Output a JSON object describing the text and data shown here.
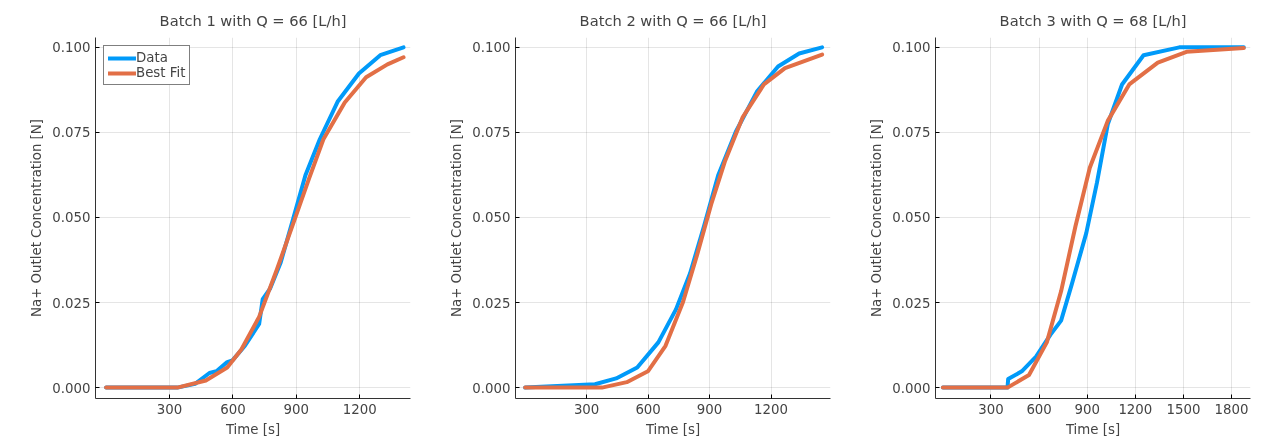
{
  "chart_data": [
    {
      "type": "line",
      "title": "Batch 1 with Q = 66 [L/h]",
      "xlabel": "Time [s]",
      "ylabel": "Na+ Outlet Concentration [N]",
      "xlim": [
        -50,
        1440
      ],
      "ylim": [
        -0.0032,
        0.1029
      ],
      "xticks": [
        300,
        600,
        900,
        1200
      ],
      "yticks": [
        {
          "value": 0,
          "label": "0.000"
        },
        {
          "value": 0.025,
          "label": "0.025"
        },
        {
          "value": 0.05,
          "label": "0.050"
        },
        {
          "value": 0.075,
          "label": "0.075"
        },
        {
          "value": 0.1,
          "label": "0.100"
        }
      ],
      "grid": true,
      "legend": "top left",
      "series": [
        {
          "name": "Data",
          "color": "#009af9",
          "x": [
            0,
            337,
            421,
            489,
            522,
            573,
            598,
            657,
            724,
            741,
            775,
            826,
            885,
            943,
            1011,
            1095,
            1196,
            1297,
            1407
          ],
          "values": [
            0,
            0,
            0.0011,
            0.0043,
            0.0048,
            0.0075,
            0.008,
            0.0123,
            0.0187,
            0.026,
            0.029,
            0.0368,
            0.0496,
            0.0624,
            0.073,
            0.084,
            0.0923,
            0.0977,
            0.1
          ]
        },
        {
          "name": "Best Fit",
          "color": "#e26f46",
          "x": [
            0,
            337,
            472,
            573,
            640,
            724,
            808,
            893,
            960,
            1028,
            1129,
            1230,
            1331,
            1407
          ],
          "values": [
            0,
            0,
            0.0021,
            0.0059,
            0.0112,
            0.0208,
            0.0347,
            0.0496,
            0.0614,
            0.073,
            0.0838,
            0.0912,
            0.095,
            0.0971
          ]
        }
      ]
    },
    {
      "type": "line",
      "title": "Batch 2 with Q = 66 [L/h]",
      "xlabel": "Time [s]",
      "ylabel": "Na+ Outlet Concentration [N]",
      "xlim": [
        -47,
        1490
      ],
      "ylim": [
        -0.0032,
        0.1029
      ],
      "xticks": [
        300,
        600,
        900,
        1200
      ],
      "yticks": [
        {
          "value": 0,
          "label": "0.000"
        },
        {
          "value": 0.025,
          "label": "0.025"
        },
        {
          "value": 0.05,
          "label": "0.050"
        },
        {
          "value": 0.075,
          "label": "0.075"
        },
        {
          "value": 0.1,
          "label": "0.100"
        }
      ],
      "grid": true,
      "series": [
        {
          "color": "#009af9",
          "x": [
            0,
            341,
            444,
            547,
            650,
            736,
            805,
            873,
            942,
            1028,
            1131,
            1234,
            1337,
            1449
          ],
          "values": [
            0,
            0.001,
            0.0027,
            0.0059,
            0.0133,
            0.023,
            0.0336,
            0.0475,
            0.0624,
            0.0752,
            0.087,
            0.0944,
            0.0982,
            0.1
          ]
        },
        {
          "color": "#e26f46",
          "x": [
            0,
            375,
            496,
            599,
            685,
            770,
            839,
            908,
            976,
            1062,
            1165,
            1268,
            1449
          ],
          "values": [
            0,
            0,
            0.0016,
            0.0048,
            0.0123,
            0.0251,
            0.039,
            0.0539,
            0.0667,
            0.0795,
            0.0891,
            0.0939,
            0.0979
          ]
        }
      ]
    },
    {
      "type": "line",
      "title": "Batch 3 with Q = 68 [L/h]",
      "xlabel": "Time [s]",
      "ylabel": "Na+ Outlet Concentration [N]",
      "xlim": [
        -46,
        1918
      ],
      "ylim": [
        -0.0032,
        0.1029
      ],
      "xticks": [
        300,
        600,
        900,
        1200,
        1500,
        1800
      ],
      "yticks": [
        {
          "value": 0,
          "label": "0.000"
        },
        {
          "value": 0.025,
          "label": "0.025"
        },
        {
          "value": 0.05,
          "label": "0.050"
        },
        {
          "value": 0.075,
          "label": "0.075"
        },
        {
          "value": 0.1,
          "label": "0.100"
        }
      ],
      "grid": true,
      "series": [
        {
          "color": "#009af9",
          "x": [
            0,
            403,
            407,
            492,
            581,
            670,
            737,
            804,
            894,
            961,
            1028,
            1117,
            1251,
            1474,
            1876
          ],
          "values": [
            0,
            0,
            0.0025,
            0.0048,
            0.0091,
            0.0155,
            0.0197,
            0.0304,
            0.0454,
            0.0603,
            0.0774,
            0.0891,
            0.0977,
            0.1,
            0.1
          ]
        },
        {
          "color": "#e26f46",
          "x": [
            0,
            403,
            537,
            648,
            737,
            827,
            916,
            1028,
            1162,
            1340,
            1519,
            1876
          ],
          "values": [
            0,
            0,
            0.0037,
            0.0133,
            0.0283,
            0.0475,
            0.0646,
            0.0784,
            0.0891,
            0.0955,
            0.0987,
            0.0998
          ]
        }
      ]
    }
  ]
}
